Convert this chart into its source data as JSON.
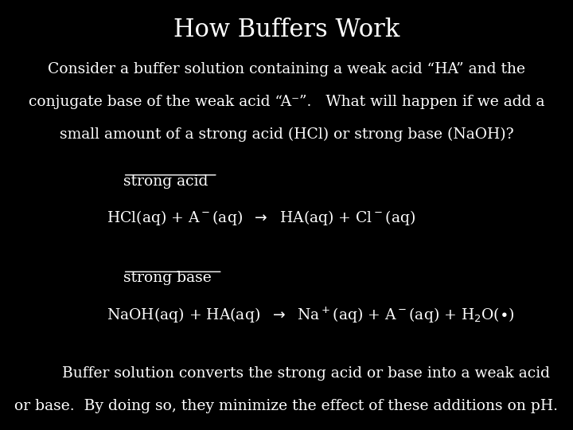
{
  "background_color": "#000000",
  "text_color": "#ffffff",
  "title": "How Buffers Work",
  "title_fontsize": 22,
  "title_font": "serif",
  "body_fontsize": 13.5,
  "body_font": "serif",
  "paragraph1_line1": "Consider a buffer solution containing a weak acid “HA” and the",
  "paragraph1_line2": "conjugate base of the weak acid “A⁻”.   What will happen if we add a",
  "paragraph1_line3": "small amount of a strong acid (HCl) or strong base (NaOH)?",
  "label_strong_acid": "strong acid",
  "label_strong_base": "strong base",
  "footer_line1": "        Buffer solution converts the strong acid or base into a weak acid",
  "footer_line2": "or base.  By doing so, they minimize the effect of these additions on pH."
}
